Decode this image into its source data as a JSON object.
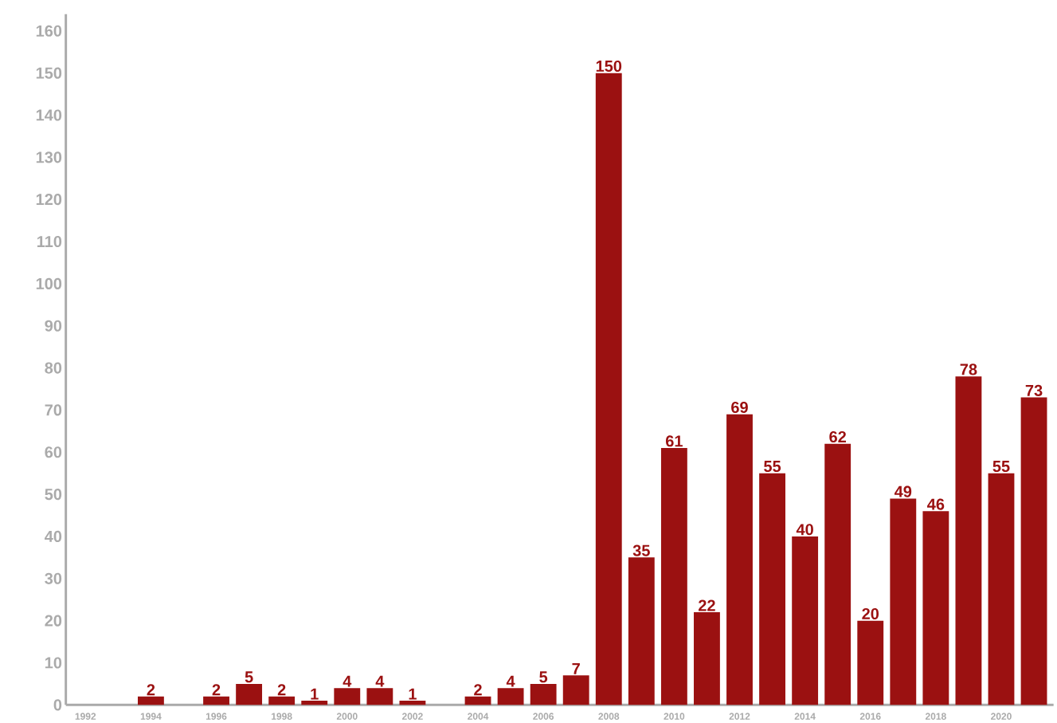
{
  "chart_data": {
    "type": "bar",
    "categories": [
      "1992",
      null,
      "1994",
      null,
      "1996",
      null,
      "1998",
      null,
      "2000",
      null,
      "2002",
      null,
      "2004",
      null,
      "2006",
      null,
      "2008",
      null,
      "2010",
      null,
      "2012",
      null,
      "2014",
      null,
      "2016",
      null,
      "2018",
      null,
      "2020",
      null
    ],
    "values": [
      null,
      null,
      2,
      null,
      2,
      5,
      2,
      1,
      4,
      4,
      1,
      null,
      2,
      4,
      5,
      7,
      150,
      35,
      61,
      22,
      69,
      55,
      40,
      62,
      20,
      49,
      46,
      78,
      55,
      73
    ],
    "color": "#9b1111",
    "ylim": [
      0,
      164
    ],
    "yticks": [
      0,
      10,
      20,
      30,
      40,
      50,
      60,
      70,
      80,
      90,
      100,
      110,
      120,
      130,
      140,
      150,
      160
    ],
    "data_labels": true
  }
}
